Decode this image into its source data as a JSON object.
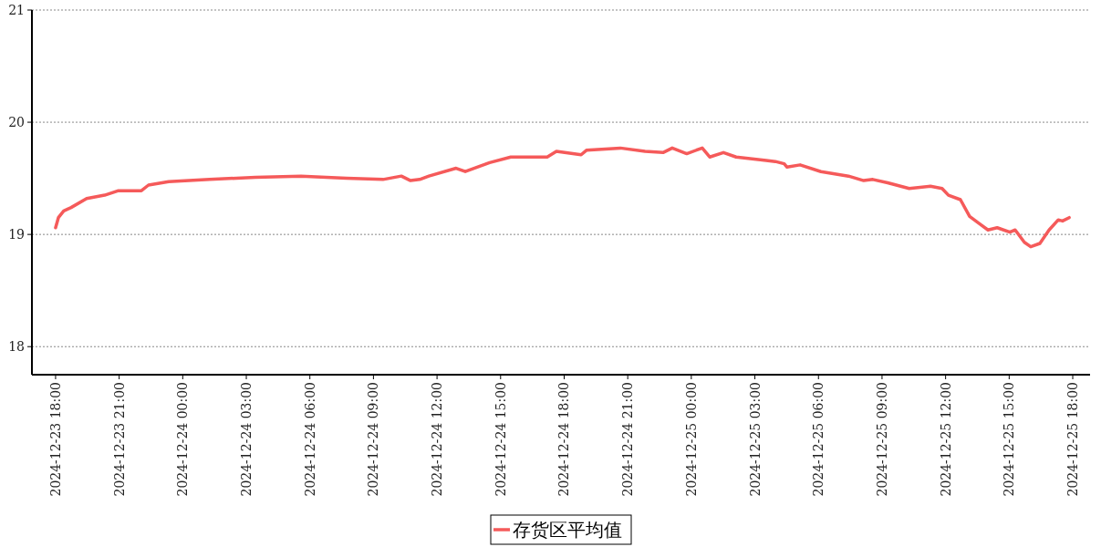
{
  "chart_data": {
    "type": "line",
    "legend": "bottom",
    "grid": "y",
    "line_style": "solid",
    "x": [
      "2024-12-23T18:00",
      "2024-12-23T18:08",
      "2024-12-23T18:23",
      "2024-12-23T18:44",
      "2024-12-23T19:28",
      "2024-12-23T20:19",
      "2024-12-23T20:58",
      "2024-12-23T22:03",
      "2024-12-23T22:23",
      "2024-12-23T23:20",
      "2024-12-24T01:16",
      "2024-12-24T03:26",
      "2024-12-24T05:35",
      "2024-12-24T07:44",
      "2024-12-24T09:27",
      "2024-12-24T10:19",
      "2024-12-24T10:45",
      "2024-12-24T11:11",
      "2024-12-24T11:37",
      "2024-12-24T12:54",
      "2024-12-24T13:20",
      "2024-12-24T14:29",
      "2024-12-24T15:29",
      "2024-12-24T17:12",
      "2024-12-24T17:38",
      "2024-12-24T18:48",
      "2024-12-24T19:03",
      "2024-12-24T20:39",
      "2024-12-24T21:49",
      "2024-12-24T22:40",
      "2024-12-24T23:06",
      "2024-12-24T23:47",
      "2024-12-25T00:31",
      "2024-12-25T00:52",
      "2024-12-25T01:31",
      "2024-12-25T02:07",
      "2024-12-25T03:32",
      "2024-12-25T03:58",
      "2024-12-25T04:23",
      "2024-12-25T04:31",
      "2024-12-25T05:08",
      "2024-12-25T06:07",
      "2024-12-25T07:25",
      "2024-12-25T08:08",
      "2024-12-25T08:34",
      "2024-12-25T09:16",
      "2024-12-25T10:17",
      "2024-12-25T11:17",
      "2024-12-25T11:50",
      "2024-12-25T12:08",
      "2024-12-25T12:42",
      "2024-12-25T13:08",
      "2024-12-25T13:34",
      "2024-12-25T14:00",
      "2024-12-25T14:26",
      "2024-12-25T15:02",
      "2024-12-25T15:17",
      "2024-12-25T15:43",
      "2024-12-25T16:01",
      "2024-12-25T16:27",
      "2024-12-25T16:53",
      "2024-12-25T17:19",
      "2024-12-25T17:31",
      "2024-12-25T17:50"
    ],
    "series": [
      {
        "name": "存货区平均值",
        "color": "#f55a5a",
        "values": [
          19.06,
          19.15,
          19.21,
          19.24,
          19.32,
          19.35,
          19.39,
          19.39,
          19.44,
          19.47,
          19.49,
          19.51,
          19.52,
          19.5,
          19.49,
          19.52,
          19.48,
          19.49,
          19.52,
          19.59,
          19.56,
          19.64,
          19.69,
          19.69,
          19.74,
          19.71,
          19.75,
          19.77,
          19.74,
          19.73,
          19.77,
          19.72,
          19.77,
          19.69,
          19.73,
          19.69,
          19.66,
          19.65,
          19.63,
          19.6,
          19.62,
          19.56,
          19.52,
          19.48,
          19.49,
          19.46,
          19.41,
          19.43,
          19.41,
          19.35,
          19.31,
          19.16,
          19.1,
          19.04,
          19.06,
          19.02,
          19.04,
          18.93,
          18.89,
          18.92,
          19.04,
          19.13,
          19.12,
          19.15
        ]
      }
    ],
    "xlim": [
      "2024-12-23T16:53",
      "2024-12-25T18:49"
    ],
    "ylim": [
      17.75,
      21
    ],
    "yticks": [
      18,
      19,
      20,
      21
    ],
    "xticks": [
      {
        "value": "2024-12-23T18:00",
        "label": "2024-12-23 18:00"
      },
      {
        "value": "2024-12-23T21:00",
        "label": "2024-12-23 21:00"
      },
      {
        "value": "2024-12-24T00:00",
        "label": "2024-12-24 00:00"
      },
      {
        "value": "2024-12-24T03:00",
        "label": "2024-12-24 03:00"
      },
      {
        "value": "2024-12-24T06:00",
        "label": "2024-12-24 06:00"
      },
      {
        "value": "2024-12-24T09:00",
        "label": "2024-12-24 09:00"
      },
      {
        "value": "2024-12-24T12:00",
        "label": "2024-12-24 12:00"
      },
      {
        "value": "2024-12-24T15:00",
        "label": "2024-12-24 15:00"
      },
      {
        "value": "2024-12-24T18:00",
        "label": "2024-12-24 18:00"
      },
      {
        "value": "2024-12-24T21:00",
        "label": "2024-12-24 21:00"
      },
      {
        "value": "2024-12-25T00:00",
        "label": "2024-12-25 00:00"
      },
      {
        "value": "2024-12-25T03:00",
        "label": "2024-12-25 03:00"
      },
      {
        "value": "2024-12-25T06:00",
        "label": "2024-12-25 06:00"
      },
      {
        "value": "2024-12-25T09:00",
        "label": "2024-12-25 09:00"
      },
      {
        "value": "2024-12-25T12:00",
        "label": "2024-12-25 12:00"
      },
      {
        "value": "2024-12-25T15:00",
        "label": "2024-12-25 15:00"
      },
      {
        "value": "2024-12-25T18:00",
        "label": "2024-12-25 18:00"
      }
    ]
  }
}
